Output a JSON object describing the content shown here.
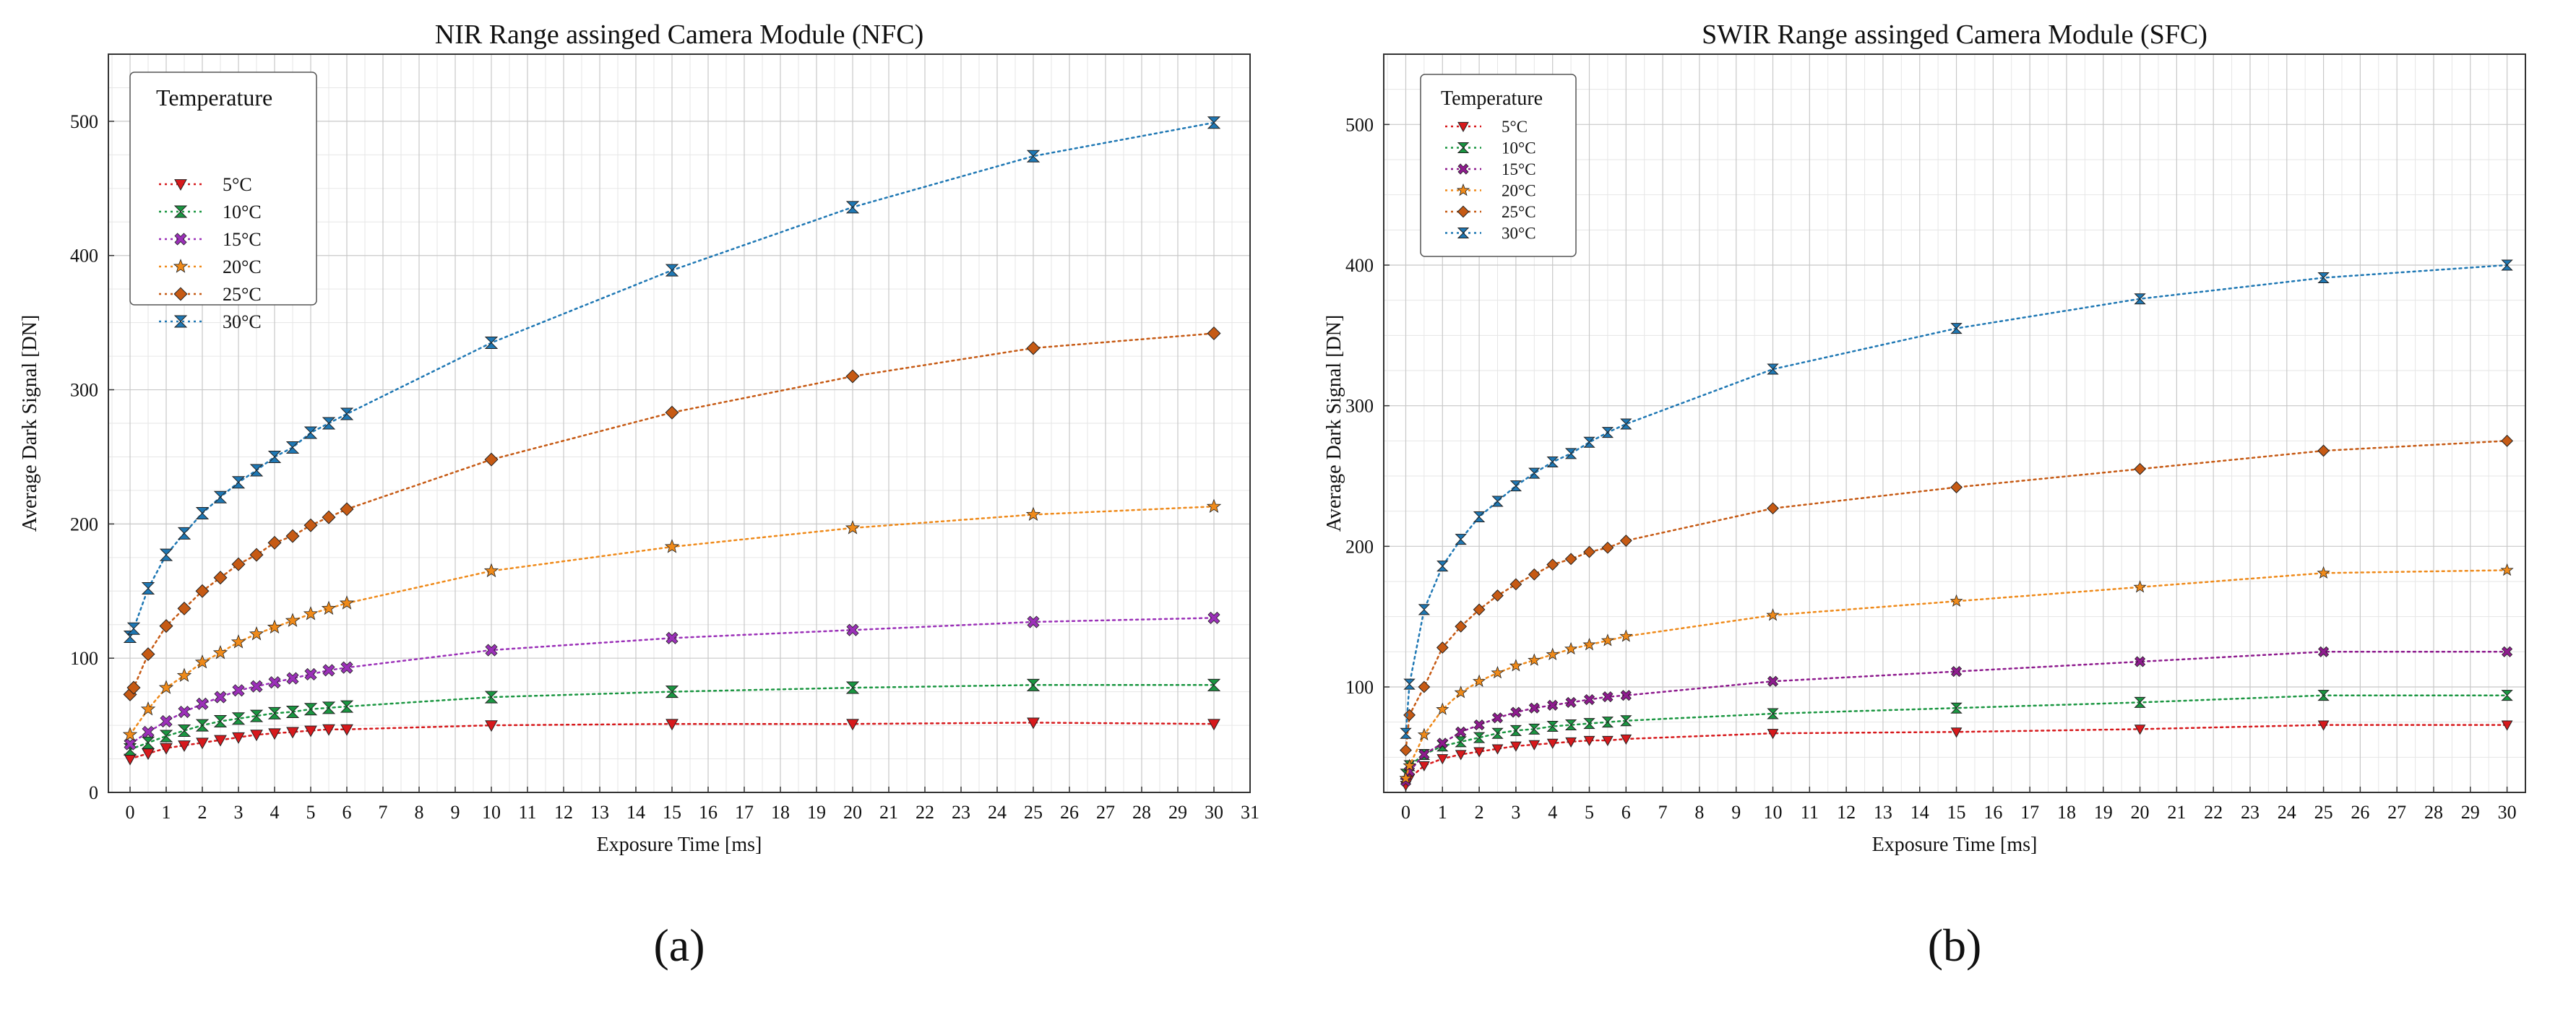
{
  "chart_data": [
    {
      "type": "line",
      "panel_label": "(a)",
      "title": "NIR Range assinged Camera Module (NFC)",
      "xlabel": "Exposure Time [ms]",
      "ylabel": "Average Dark Signal [DN]",
      "xlim": [
        -0.6,
        31
      ],
      "ylim": [
        0,
        550
      ],
      "xticks": [
        0,
        1,
        2,
        3,
        4,
        5,
        6,
        7,
        8,
        9,
        10,
        11,
        12,
        13,
        14,
        15,
        16,
        17,
        18,
        19,
        20,
        21,
        22,
        23,
        24,
        25,
        26,
        27,
        28,
        29,
        30,
        31
      ],
      "yticks": [
        0,
        100,
        200,
        300,
        400,
        500
      ],
      "grid": true,
      "legend_title": "Temperature",
      "legend_position": "top-left",
      "series": [
        {
          "name": "5°C",
          "color": "#d7191c",
          "marker": "triangle-down",
          "x": [
            0,
            0.5,
            1,
            1.5,
            2,
            2.5,
            3,
            3.5,
            4,
            4.5,
            5,
            5.5,
            6,
            10,
            15,
            20,
            25,
            30
          ],
          "y": [
            25,
            29,
            33,
            35,
            37,
            39,
            41,
            43,
            44,
            45,
            46,
            47,
            47,
            50,
            51,
            51,
            52,
            51
          ]
        },
        {
          "name": "10°C",
          "color": "#1a9641",
          "marker": "hourglass",
          "x": [
            0,
            0.5,
            1,
            1.5,
            2,
            2.5,
            3,
            3.5,
            4,
            4.5,
            5,
            5.5,
            6,
            10,
            15,
            20,
            25,
            30
          ],
          "y": [
            32,
            37,
            42,
            46,
            50,
            53,
            55,
            57,
            59,
            60,
            62,
            63,
            64,
            71,
            75,
            78,
            80,
            80
          ]
        },
        {
          "name": "15°C",
          "color": "#9b30b8",
          "marker": "x-cross",
          "x": [
            0,
            0.5,
            1,
            1.5,
            2,
            2.5,
            3,
            3.5,
            4,
            4.5,
            5,
            5.5,
            6,
            10,
            15,
            20,
            25,
            30
          ],
          "y": [
            36,
            45,
            53,
            60,
            66,
            71,
            76,
            79,
            82,
            85,
            88,
            91,
            93,
            106,
            115,
            121,
            127,
            130
          ]
        },
        {
          "name": "20°C",
          "color": "#ef8a1a",
          "marker": "star",
          "x": [
            0,
            0.5,
            1,
            1.5,
            2,
            2.5,
            3,
            3.5,
            4,
            4.5,
            5,
            5.5,
            6,
            10,
            15,
            20,
            25,
            30
          ],
          "y": [
            43,
            62,
            78,
            87,
            97,
            104,
            112,
            118,
            123,
            128,
            133,
            137,
            141,
            165,
            183,
            197,
            207,
            213
          ]
        },
        {
          "name": "25°C",
          "color": "#c65a14",
          "marker": "diamond",
          "x": [
            0,
            0.1,
            0.5,
            1,
            1.5,
            2,
            2.5,
            3,
            3.5,
            4,
            4.5,
            5,
            5.5,
            6,
            10,
            15,
            20,
            25,
            30
          ],
          "y": [
            73,
            78,
            103,
            124,
            137,
            150,
            160,
            170,
            177,
            186,
            191,
            199,
            205,
            211,
            248,
            283,
            310,
            331,
            342
          ]
        },
        {
          "name": "30°C",
          "color": "#1f78b4",
          "marker": "hourglass",
          "x": [
            0,
            0.1,
            0.5,
            1,
            1.5,
            2,
            2.5,
            3,
            3.5,
            4,
            4.5,
            5,
            5.5,
            6,
            10,
            15,
            20,
            25,
            30
          ],
          "y": [
            116,
            122,
            152,
            177,
            193,
            208,
            220,
            231,
            240,
            250,
            257,
            268,
            275,
            282,
            335,
            389,
            436,
            474,
            499
          ]
        }
      ]
    },
    {
      "type": "line",
      "panel_label": "(b)",
      "title": "SWIR Range assinged Camera Module (SFC)",
      "xlabel": "Exposure Time [ms]",
      "ylabel": "Average Dark Signal [DN]",
      "xlim": [
        -0.6,
        30.5
      ],
      "ylim": [
        25,
        550
      ],
      "xticks": [
        0,
        1,
        2,
        3,
        4,
        5,
        6,
        7,
        8,
        9,
        10,
        11,
        12,
        13,
        14,
        15,
        16,
        17,
        18,
        19,
        20,
        21,
        22,
        23,
        24,
        25,
        26,
        27,
        28,
        29,
        30
      ],
      "yticks": [
        100,
        200,
        300,
        400,
        500
      ],
      "grid": true,
      "legend_title": "Temperature",
      "legend_position": "top-left",
      "series": [
        {
          "name": "5°C",
          "color": "#d7191c",
          "marker": "triangle-down",
          "x": [
            0,
            0.1,
            0.5,
            1,
            1.5,
            2,
            2.5,
            3,
            3.5,
            4,
            4.5,
            5,
            5.5,
            6,
            10,
            15,
            20,
            25,
            30
          ],
          "y": [
            30,
            35,
            44,
            49,
            52,
            54,
            56,
            58,
            59,
            60,
            61,
            62,
            62,
            63,
            67,
            68,
            70,
            73,
            73
          ]
        },
        {
          "name": "10°C",
          "color": "#1a9641",
          "marker": "hourglass",
          "x": [
            0,
            0.1,
            0.5,
            1,
            1.5,
            2,
            2.5,
            3,
            3.5,
            4,
            4.5,
            5,
            5.5,
            6,
            10,
            15,
            20,
            25,
            30
          ],
          "y": [
            38,
            44,
            52,
            58,
            61,
            64,
            67,
            69,
            70,
            72,
            73,
            74,
            75,
            76,
            81,
            85,
            89,
            94,
            94
          ]
        },
        {
          "name": "15°C",
          "color": "#8e1b8e",
          "marker": "x-cross",
          "x": [
            0,
            0.1,
            0.5,
            1,
            1.5,
            2,
            2.5,
            3,
            3.5,
            4,
            4.5,
            5,
            5.5,
            6,
            10,
            15,
            20,
            25,
            30
          ],
          "y": [
            33,
            40,
            52,
            60,
            68,
            73,
            78,
            82,
            85,
            87,
            89,
            91,
            93,
            94,
            104,
            111,
            118,
            125,
            125
          ]
        },
        {
          "name": "20°C",
          "color": "#ef8a1a",
          "marker": "star",
          "x": [
            0,
            0.1,
            0.5,
            1,
            1.5,
            2,
            2.5,
            3,
            3.5,
            4,
            4.5,
            5,
            5.5,
            6,
            10,
            15,
            20,
            25,
            30
          ],
          "y": [
            35,
            44,
            66,
            84,
            96,
            104,
            110,
            115,
            119,
            123,
            127,
            130,
            133,
            136,
            151,
            161,
            171,
            181,
            183
          ]
        },
        {
          "name": "25°C",
          "color": "#c65a14",
          "marker": "diamond",
          "x": [
            0,
            0.1,
            0.5,
            1,
            1.5,
            2,
            2.5,
            3,
            3.5,
            4,
            4.5,
            5,
            5.5,
            6,
            10,
            15,
            20,
            25,
            30
          ],
          "y": [
            55,
            80,
            100,
            128,
            143,
            155,
            165,
            173,
            180,
            187,
            191,
            196,
            199,
            204,
            227,
            242,
            255,
            268,
            275
          ]
        },
        {
          "name": "30°C",
          "color": "#1f78b4",
          "marker": "hourglass",
          "x": [
            0,
            0.1,
            0.5,
            1,
            1.5,
            2,
            2.5,
            3,
            3.5,
            4,
            4.5,
            5,
            5.5,
            6,
            10,
            15,
            20,
            25,
            30
          ],
          "y": [
            67,
            102,
            155,
            186,
            205,
            221,
            232,
            243,
            252,
            260,
            266,
            274,
            281,
            287,
            326,
            355,
            376,
            391,
            400
          ]
        }
      ]
    }
  ]
}
